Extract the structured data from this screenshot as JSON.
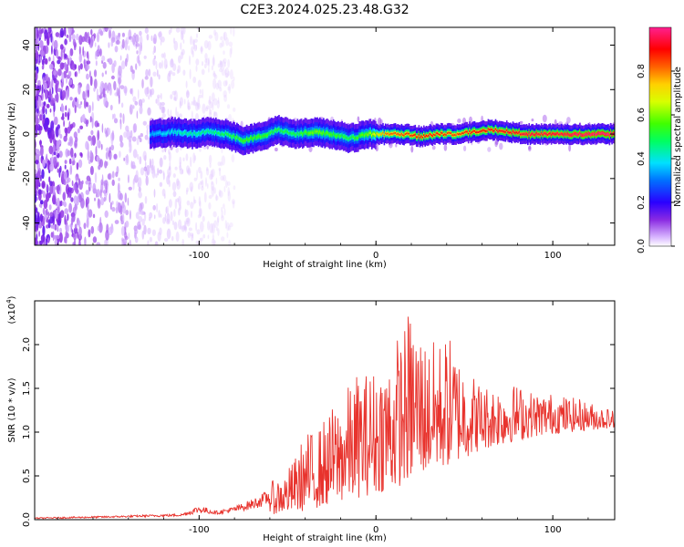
{
  "title": "C2E3.2024.025.23.48.G32",
  "chart_data": [
    {
      "type": "heatmap",
      "xlabel": "Height of straight line (km)",
      "ylabel": "Frequency (Hz)",
      "xlim": [
        -193,
        135
      ],
      "ylim": [
        -50,
        48
      ],
      "xticks": [
        -100,
        0,
        100
      ],
      "xtick_labels": [
        "-100",
        "0",
        "100"
      ],
      "yticks": [
        -40,
        -20,
        0,
        20,
        40
      ],
      "ytick_labels": [
        "-40",
        "-20",
        "0",
        "20",
        "40"
      ],
      "colorbar": {
        "label": "Normalized spectral amplitude",
        "range": [
          0,
          1
        ],
        "ticks": [
          0.0,
          0.2,
          0.4,
          0.6,
          0.8
        ],
        "tick_labels": [
          "0.0",
          "0.2",
          "0.4",
          "0.6",
          "0.8"
        ],
        "colormap": "rainbow"
      },
      "ridge": {
        "x": [
          -128,
          -115,
          -105,
          -95,
          -85,
          -75,
          -65,
          -55,
          -45,
          -35,
          -25,
          -15,
          -5,
          5,
          15,
          25,
          35,
          45,
          55,
          65,
          75,
          85,
          95,
          105,
          115,
          135
        ],
        "y": [
          0,
          1,
          0,
          1,
          0,
          -3,
          -1,
          2,
          0,
          1,
          0,
          -2,
          0,
          0,
          0,
          -1,
          0,
          0,
          1,
          2,
          1,
          0,
          0,
          0,
          0,
          0
        ],
        "amplitude": [
          0.35,
          0.4,
          0.45,
          0.45,
          0.5,
          0.55,
          0.55,
          0.5,
          0.5,
          0.6,
          0.55,
          0.5,
          0.6,
          0.8,
          0.85,
          0.9,
          0.88,
          0.85,
          0.9,
          0.9,
          0.92,
          0.95,
          0.95,
          0.95,
          0.98,
          1.0
        ]
      },
      "noise_region": [
        -193,
        -90
      ]
    },
    {
      "type": "line",
      "xlabel": "Height of straight line (km)",
      "ylabel": "SNR (10 * v/v)",
      "y_exponent_label": "(x10",
      "y_exponent_power": "4",
      "xlim": [
        -193,
        135
      ],
      "ylim": [
        0,
        2.5
      ],
      "xticks": [
        -100,
        0,
        100
      ],
      "xtick_labels": [
        "-100",
        "0",
        "100"
      ],
      "yticks": [
        0.0,
        0.5,
        1.0,
        1.5,
        2.0
      ],
      "ytick_labels": [
        "0.0",
        "0.5",
        "1.0",
        "1.5",
        "2.0"
      ],
      "color": "#e8332d",
      "envelope": {
        "x": [
          -193,
          -150,
          -110,
          -100,
          -90,
          -80,
          -70,
          -60,
          -50,
          -40,
          -30,
          -20,
          -10,
          0,
          10,
          20,
          30,
          40,
          50,
          60,
          70,
          80,
          90,
          100,
          110,
          120,
          135
        ],
        "max": [
          0.03,
          0.05,
          0.08,
          0.2,
          0.12,
          0.18,
          0.28,
          0.42,
          0.55,
          0.95,
          1.1,
          1.4,
          1.65,
          1.75,
          1.95,
          2.4,
          2.0,
          2.1,
          1.8,
          1.55,
          1.55,
          1.55,
          1.45,
          1.45,
          1.4,
          1.35,
          1.25
        ],
        "min": [
          0.0,
          0.01,
          0.02,
          0.02,
          0.03,
          0.04,
          0.05,
          0.06,
          0.08,
          0.1,
          0.15,
          0.2,
          0.25,
          0.3,
          0.35,
          0.45,
          0.55,
          0.6,
          0.7,
          0.8,
          0.85,
          0.9,
          0.95,
          0.98,
          1.0,
          1.02,
          1.05
        ]
      }
    }
  ]
}
